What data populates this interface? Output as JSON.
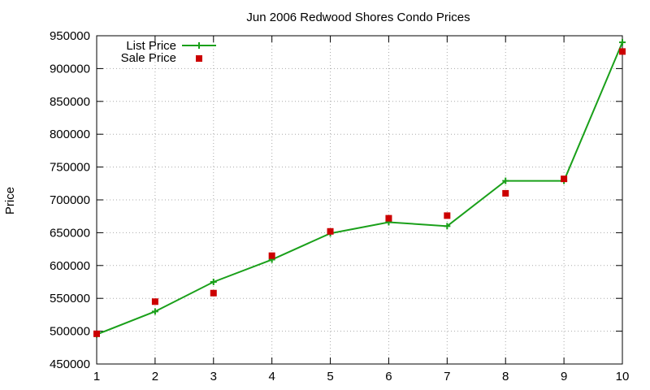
{
  "chart_data": {
    "type": "line",
    "title": "Jun 2006 Redwood Shores Condo Prices",
    "xlabel": "",
    "ylabel": "Price",
    "x": [
      1,
      2,
      3,
      4,
      5,
      6,
      7,
      8,
      9,
      10
    ],
    "xlim": [
      1,
      10
    ],
    "ylim": [
      450000,
      950000
    ],
    "yticks": [
      450000,
      500000,
      550000,
      600000,
      650000,
      700000,
      750000,
      800000,
      850000,
      900000,
      950000
    ],
    "xticks": [
      1,
      2,
      3,
      4,
      5,
      6,
      7,
      8,
      9,
      10
    ],
    "grid": true,
    "legend_position": "top-left",
    "series": [
      {
        "name": "List Price",
        "style": "line with plus markers",
        "color": "#1aa01a",
        "values": [
          495000,
          530000,
          575000,
          609000,
          649000,
          666000,
          660000,
          729000,
          729000,
          940000
        ]
      },
      {
        "name": "Sale Price",
        "style": "square points",
        "color": "#cc0000",
        "values": [
          496000,
          545000,
          558000,
          615000,
          652000,
          672000,
          676000,
          710000,
          732000,
          926000
        ]
      }
    ]
  }
}
